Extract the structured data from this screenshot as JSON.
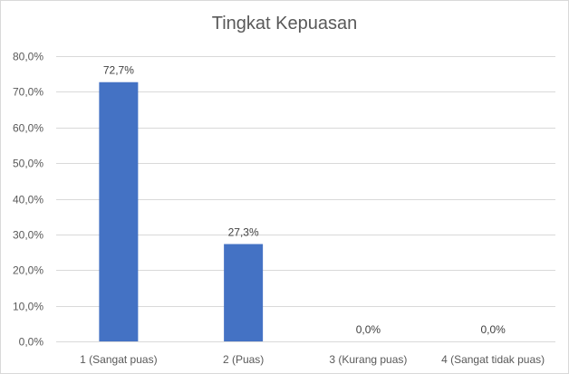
{
  "chart_data": {
    "type": "bar",
    "title": "Tingkat Kepuasan",
    "categories": [
      "1 (Sangat puas)",
      "2 (Puas)",
      "3 (Kurang puas)",
      "4 (Sangat tidak puas)"
    ],
    "values": [
      72.7,
      27.3,
      0.0,
      0.0
    ],
    "data_labels": [
      "72,7%",
      "27,3%",
      "0,0%",
      "0,0%"
    ],
    "ylim": [
      0,
      80
    ],
    "yticks": [
      0,
      10,
      20,
      30,
      40,
      50,
      60,
      70,
      80
    ],
    "ytick_labels": [
      "0,0%",
      "10,0%",
      "20,0%",
      "30,0%",
      "40,0%",
      "50,0%",
      "60,0%",
      "70,0%",
      "80,0%"
    ],
    "grid": true,
    "legend": "none",
    "bar_color": "#4472c4",
    "gridline_color": "#d9d9d9"
  }
}
